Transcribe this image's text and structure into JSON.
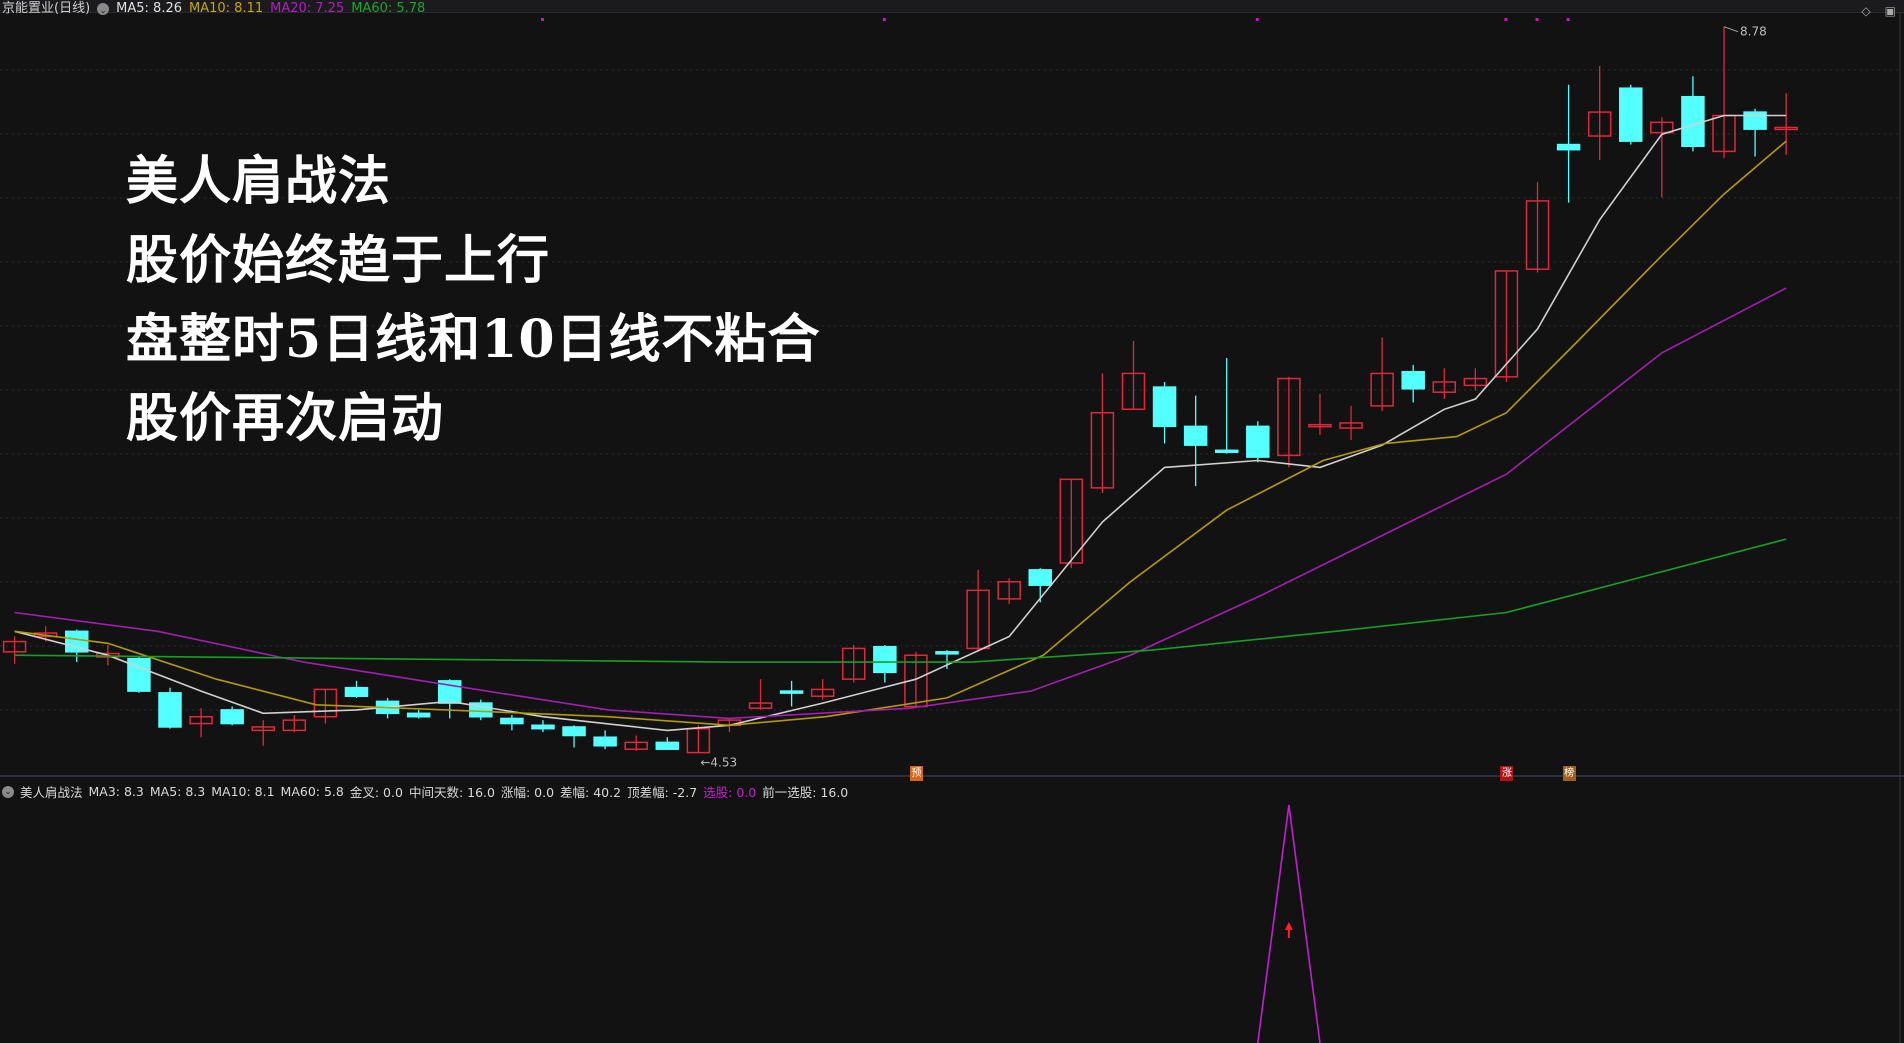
{
  "header": {
    "stock": "京能置业(日线)",
    "ma5": "MA5: 8.26",
    "ma10": "MA10: 8.11",
    "ma20": "MA20: 7.25",
    "ma60": "MA60: 5.78"
  },
  "colors": {
    "up": "#e0283c",
    "down": "#54ffff",
    "ma5": "#d0d0d0",
    "ma10": "#b39b00",
    "ma20": "#a21fb0",
    "ma60": "#14a024",
    "signal": "#c020d0",
    "bg": "#131213"
  },
  "overlay_lines": [
    "美人肩战法",
    "股价始终趋于上行",
    "盘整时5日线和10日线不粘合",
    "股价再次启动"
  ],
  "indicator_header": {
    "name": "美人肩战法",
    "ma3": "MA3: 8.3",
    "ma5": "MA5: 8.3",
    "ma10": "MA10: 8.1",
    "ma60": "MA60: 5.8",
    "golden_cross": "金叉: 0.0",
    "mid_days": "中间天数: 16.0",
    "rise": "涨幅: 0.0",
    "diff": "差幅: 40.2",
    "top_diff": "顶差幅: -2.7",
    "select": "选股: 0.0",
    "prev_select": "前一选股: 16.0"
  },
  "chart_data": {
    "type": "candlestick",
    "price_range": [
      4.53,
      8.78
    ],
    "high_label": "8.78",
    "low_label": "4.53",
    "candles": [
      [
        5.12,
        5.21,
        5.05,
        5.18
      ],
      [
        5.21,
        5.27,
        5.18,
        5.23
      ],
      [
        5.24,
        5.25,
        5.06,
        5.12
      ],
      [
        5.09,
        5.16,
        5.04,
        5.11
      ],
      [
        5.08,
        5.09,
        4.88,
        4.89
      ],
      [
        4.88,
        4.91,
        4.67,
        4.68
      ],
      [
        4.7,
        4.79,
        4.62,
        4.74
      ],
      [
        4.78,
        4.8,
        4.69,
        4.7
      ],
      [
        4.66,
        4.72,
        4.57,
        4.68
      ],
      [
        4.66,
        4.75,
        4.65,
        4.72
      ],
      [
        4.74,
        4.9,
        4.7,
        4.9
      ],
      [
        4.91,
        4.95,
        4.85,
        4.86
      ],
      [
        4.83,
        4.85,
        4.73,
        4.76
      ],
      [
        4.76,
        4.78,
        4.73,
        4.74
      ],
      [
        4.95,
        4.96,
        4.73,
        4.82
      ],
      [
        4.82,
        4.84,
        4.72,
        4.74
      ],
      [
        4.73,
        4.75,
        4.66,
        4.7
      ],
      [
        4.69,
        4.72,
        4.65,
        4.67
      ],
      [
        4.68,
        4.69,
        4.56,
        4.63
      ],
      [
        4.62,
        4.66,
        4.55,
        4.57
      ],
      [
        4.55,
        4.63,
        4.54,
        4.59
      ],
      [
        4.59,
        4.62,
        4.55,
        4.55
      ],
      [
        4.53,
        4.69,
        4.53,
        4.67
      ],
      [
        4.69,
        4.73,
        4.65,
        4.72
      ],
      [
        4.79,
        4.96,
        4.78,
        4.82
      ],
      [
        4.89,
        4.95,
        4.8,
        4.88
      ],
      [
        4.86,
        4.96,
        4.84,
        4.9
      ],
      [
        4.96,
        5.16,
        4.94,
        5.14
      ],
      [
        5.15,
        5.16,
        4.94,
        5.0
      ],
      [
        4.8,
        5.12,
        4.8,
        5.1
      ],
      [
        5.12,
        5.13,
        5.02,
        5.11
      ],
      [
        5.14,
        5.6,
        5.12,
        5.48
      ],
      [
        5.43,
        5.55,
        5.4,
        5.53
      ],
      [
        5.6,
        5.61,
        5.41,
        5.51
      ],
      [
        5.64,
        6.13,
        5.61,
        6.13
      ],
      [
        6.08,
        6.75,
        6.05,
        6.52
      ],
      [
        6.54,
        6.94,
        6.54,
        6.75
      ],
      [
        6.67,
        6.7,
        6.34,
        6.44
      ],
      [
        6.44,
        6.62,
        6.09,
        6.33
      ],
      [
        6.3,
        6.84,
        6.28,
        6.29
      ],
      [
        6.44,
        6.47,
        6.23,
        6.26
      ],
      [
        6.27,
        6.73,
        6.2,
        6.72
      ],
      [
        6.45,
        6.63,
        6.39,
        6.45
      ],
      [
        6.43,
        6.56,
        6.36,
        6.46
      ],
      [
        6.56,
        6.96,
        6.53,
        6.75
      ],
      [
        6.76,
        6.8,
        6.58,
        6.66
      ],
      [
        6.64,
        6.78,
        6.6,
        6.7
      ],
      [
        6.68,
        6.78,
        6.65,
        6.72
      ],
      [
        6.73,
        7.35,
        6.7,
        7.35
      ],
      [
        7.36,
        7.87,
        7.34,
        7.76
      ],
      [
        8.09,
        8.44,
        7.75,
        8.06
      ],
      [
        8.14,
        8.55,
        8.0,
        8.28
      ],
      [
        8.42,
        8.44,
        8.09,
        8.11
      ],
      [
        8.16,
        8.25,
        7.78,
        8.22
      ],
      [
        8.37,
        8.49,
        8.05,
        8.08
      ],
      [
        8.05,
        8.78,
        8.01,
        8.26
      ],
      [
        8.28,
        8.3,
        8.02,
        8.18
      ],
      [
        8.19,
        8.39,
        8.03,
        8.19
      ]
    ],
    "candle_fields": [
      "open",
      "high",
      "low",
      "close"
    ],
    "moving_averages": [
      {
        "name": "MA5",
        "color": "#d0d0d0",
        "points": [
          [
            0,
            5.24
          ],
          [
            3,
            5.1
          ],
          [
            6,
            4.89
          ],
          [
            8,
            4.76
          ],
          [
            11,
            4.78
          ],
          [
            14,
            4.83
          ],
          [
            17,
            4.74
          ],
          [
            19,
            4.7
          ],
          [
            21,
            4.66
          ],
          [
            23,
            4.69
          ],
          [
            26,
            4.82
          ],
          [
            29,
            4.96
          ],
          [
            32,
            5.21
          ],
          [
            35,
            5.88
          ],
          [
            37,
            6.2
          ],
          [
            40,
            6.24
          ],
          [
            42,
            6.2
          ],
          [
            44,
            6.33
          ],
          [
            46,
            6.54
          ],
          [
            47,
            6.6
          ],
          [
            49,
            7.01
          ],
          [
            51,
            7.65
          ],
          [
            53,
            8.15
          ],
          [
            55,
            8.26
          ],
          [
            57,
            8.26
          ]
        ]
      },
      {
        "name": "MA10",
        "color": "#b39b00",
        "points": [
          [
            0,
            5.24
          ],
          [
            3,
            5.17
          ],
          [
            6.5,
            4.96
          ],
          [
            9.7,
            4.81
          ],
          [
            15.2,
            4.77
          ],
          [
            19.1,
            4.74
          ],
          [
            23,
            4.69
          ],
          [
            26.1,
            4.74
          ],
          [
            30,
            4.85
          ],
          [
            33.1,
            5.1
          ],
          [
            35.9,
            5.53
          ],
          [
            39,
            5.95
          ],
          [
            42.1,
            6.24
          ],
          [
            44.1,
            6.34
          ],
          [
            46.4,
            6.38
          ],
          [
            48,
            6.52
          ],
          [
            50.3,
            6.94
          ],
          [
            53,
            7.44
          ],
          [
            55,
            7.8
          ],
          [
            57,
            8.11
          ]
        ]
      },
      {
        "name": "MA20",
        "color": "#a21fb0",
        "points": [
          [
            0,
            5.35
          ],
          [
            4.6,
            5.24
          ],
          [
            9.3,
            5.06
          ],
          [
            15.2,
            4.89
          ],
          [
            19.1,
            4.78
          ],
          [
            23,
            4.73
          ],
          [
            28.8,
            4.79
          ],
          [
            32.7,
            4.89
          ],
          [
            35.9,
            5.1
          ],
          [
            40.1,
            5.45
          ],
          [
            44.1,
            5.81
          ],
          [
            48,
            6.16
          ],
          [
            53,
            6.87
          ],
          [
            57,
            7.25
          ]
        ]
      },
      {
        "name": "MA60",
        "color": "#14a024",
        "points": [
          [
            0,
            5.1
          ],
          [
            11.3,
            5.08
          ],
          [
            23,
            5.06
          ],
          [
            30.8,
            5.06
          ],
          [
            36.6,
            5.13
          ],
          [
            42.5,
            5.24
          ],
          [
            48,
            5.35
          ],
          [
            57,
            5.78
          ]
        ]
      }
    ],
    "top_markers": [
      17,
      28,
      40,
      48,
      49,
      50
    ],
    "badges": [
      {
        "index": 29,
        "text": "预",
        "color": "#d9661c"
      },
      {
        "index": 48,
        "text": "涨",
        "color": "#b01418"
      },
      {
        "index": 50,
        "text": "榜",
        "color": "#a0601c"
      }
    ],
    "indicator": {
      "signal_index": 41,
      "signal_value": 1
    }
  }
}
